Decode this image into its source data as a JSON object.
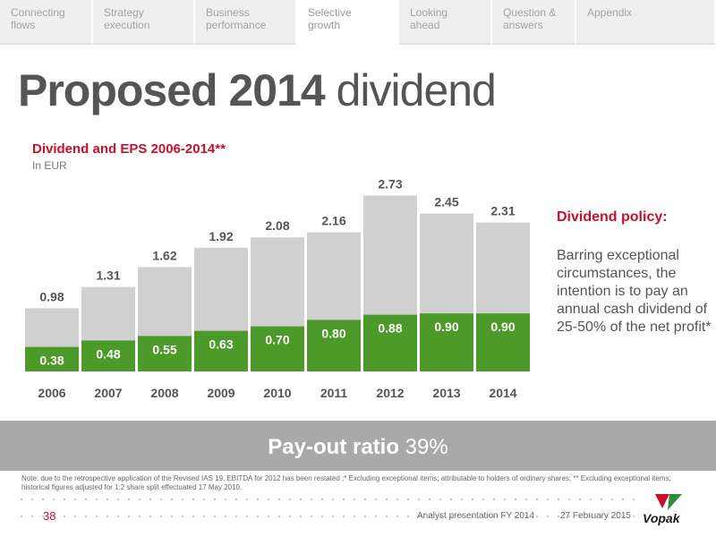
{
  "nav": {
    "items": [
      {
        "label": "Connecting\nflows"
      },
      {
        "label": "Strategy\nexecution"
      },
      {
        "label": "Business\nperformance"
      },
      {
        "label": "Selective\ngrowth",
        "active": true
      },
      {
        "label": "Looking\nahead"
      },
      {
        "label": "Question &\nanswers"
      },
      {
        "label": "Appendix"
      }
    ]
  },
  "title": {
    "bold": "Proposed 2014",
    "light": " dividend"
  },
  "chart_data": {
    "type": "bar",
    "title": "Dividend and EPS 2006-2014**",
    "subtitle": "In EUR",
    "categories": [
      "2006",
      "2007",
      "2008",
      "2009",
      "2010",
      "2011",
      "2012",
      "2013",
      "2014"
    ],
    "series": [
      {
        "name": "EPS",
        "values": [
          0.98,
          1.31,
          1.62,
          1.92,
          2.08,
          2.16,
          2.73,
          2.45,
          2.31
        ],
        "color": "#d0d0d0"
      },
      {
        "name": "Dividend",
        "values": [
          0.38,
          0.48,
          0.55,
          0.63,
          0.7,
          0.8,
          0.88,
          0.9,
          0.9
        ],
        "color": "#4c9a2a"
      }
    ],
    "ylim": [
      0,
      2.9
    ],
    "grid": false,
    "overlap": true
  },
  "policy": {
    "title": "Dividend policy:",
    "text": "Barring exceptional circumstances, the intention is to pay an annual cash dividend of 25-50% of the net profit*"
  },
  "payout": {
    "label": "Pay-out ratio",
    "value": "39%"
  },
  "note": "Note: due to the retrospective application of the Revised IAS 19, EBITDA for 2012 has been restated ;*  Excluding exceptional items; attributable to holders of ordinary shares; ** Excluding exceptional items; historical figures adjusted for 1:2 share split effectuated 17 May 2010.",
  "footer": {
    "page_number": "38",
    "presentation": "Analyst presentation FY 2014",
    "date": "27 February 2015",
    "brand": "Vopak"
  },
  "colors": {
    "accent": "#c8102e",
    "green": "#4c9a2a",
    "bar_grey": "#d0d0d0",
    "band_grey": "#a9a9a9"
  }
}
